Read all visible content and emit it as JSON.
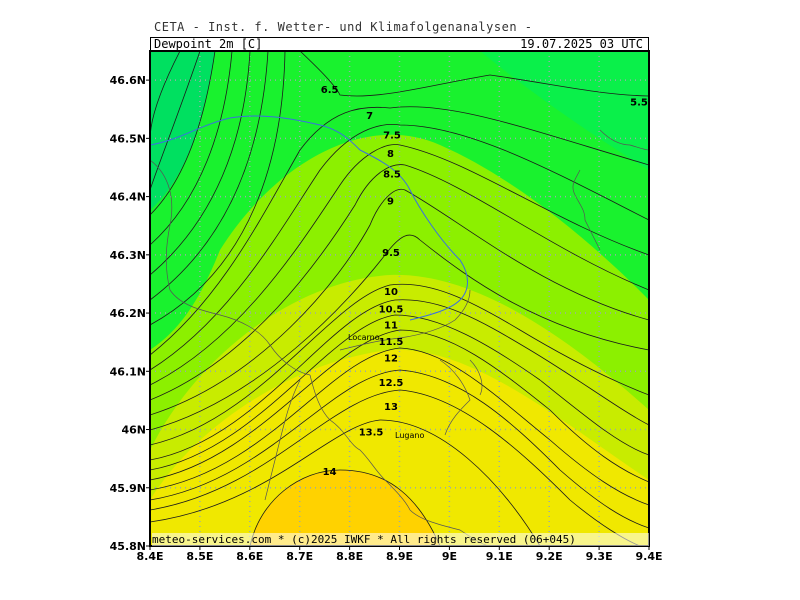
{
  "header": {
    "institution": "CETA - Inst. f. Wetter- und Klimafolgenanalysen -",
    "parameter": "Dewpoint 2m [C]",
    "datetime": "19.07.2025 03 UTC"
  },
  "footer": "meteo-services.com * (c)2025 IWKF * All rights reserved (06+045)",
  "map": {
    "lon_range": [
      8.4,
      9.4
    ],
    "lat_range": [
      45.8,
      46.65
    ],
    "x_ticks": [
      "8.4E",
      "8.5E",
      "8.6E",
      "8.7E",
      "8.8E",
      "8.9E",
      "9E",
      "9.1E",
      "9.2E",
      "9.3E",
      "9.4E"
    ],
    "y_ticks": [
      {
        "lat": 46.6,
        "label": "46.6N"
      },
      {
        "lat": 46.5,
        "label": "46.5N"
      },
      {
        "lat": 46.4,
        "label": "46.4N"
      },
      {
        "lat": 46.3,
        "label": "46.3N"
      },
      {
        "lat": 46.2,
        "label": "46.2N"
      },
      {
        "lat": 46.1,
        "label": "46.1N"
      },
      {
        "lat": 46.0,
        "label": "46N"
      },
      {
        "lat": 45.9,
        "label": "45.9N"
      },
      {
        "lat": 45.8,
        "label": "45.8N"
      }
    ],
    "contour_labels": [
      {
        "text": "6.5",
        "lon": 8.76,
        "lat": 46.585
      },
      {
        "text": "7",
        "lon": 8.84,
        "lat": 46.54
      },
      {
        "text": "7.5",
        "lon": 8.885,
        "lat": 46.507
      },
      {
        "text": "8",
        "lon": 8.882,
        "lat": 46.475
      },
      {
        "text": "8.5",
        "lon": 8.885,
        "lat": 46.44
      },
      {
        "text": "9",
        "lon": 8.882,
        "lat": 46.393
      },
      {
        "text": "9.5",
        "lon": 8.883,
        "lat": 46.305
      },
      {
        "text": "10",
        "lon": 8.883,
        "lat": 46.238
      },
      {
        "text": "10.5",
        "lon": 8.883,
        "lat": 46.208
      },
      {
        "text": "11",
        "lon": 8.883,
        "lat": 46.18
      },
      {
        "text": "11.5",
        "lon": 8.883,
        "lat": 46.152
      },
      {
        "text": "12",
        "lon": 8.883,
        "lat": 46.124
      },
      {
        "text": "12.5",
        "lon": 8.883,
        "lat": 46.082
      },
      {
        "text": "13",
        "lon": 8.883,
        "lat": 46.04
      },
      {
        "text": "13.5",
        "lon": 8.843,
        "lat": 45.997
      },
      {
        "text": "14",
        "lon": 8.76,
        "lat": 45.929
      },
      {
        "text": "5.5",
        "lon": 9.38,
        "lat": 46.563
      }
    ],
    "cities": [
      {
        "name": "Locarno",
        "lon": 8.8,
        "lat": 46.163
      },
      {
        "name": "Lugano",
        "lon": 8.96,
        "lat": 45.99
      }
    ],
    "colors": {
      "green_dark": "#00e060",
      "green": "#19f22e",
      "lime": "#8cf000",
      "yellow_green": "#c8ec00",
      "yellow": "#f0e800",
      "gold": "#ffd200",
      "border": "#3a6fe0"
    }
  }
}
